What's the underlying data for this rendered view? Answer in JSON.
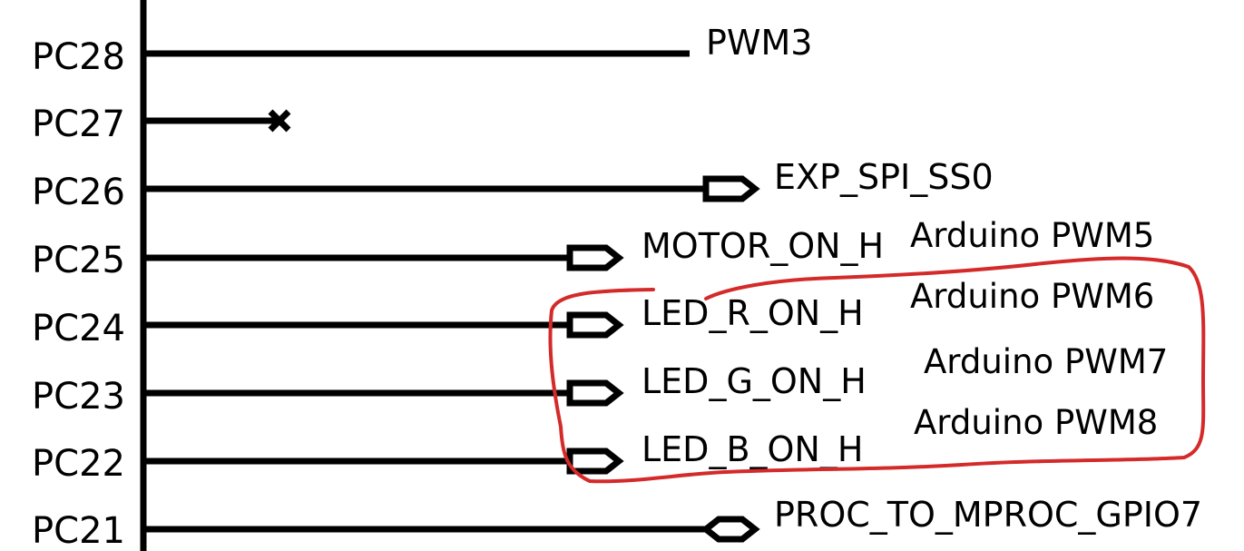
{
  "pins": [
    {
      "name": "PC28",
      "net": "PWM3",
      "end": "plain"
    },
    {
      "name": "PC27",
      "net": "",
      "end": "no-connect"
    },
    {
      "name": "PC26",
      "net": "EXP_SPI_SS0",
      "end": "output-port"
    },
    {
      "name": "PC25",
      "net": "MOTOR_ON_H",
      "end": "output-port"
    },
    {
      "name": "PC24",
      "net": "LED_R_ON_H",
      "end": "output-port"
    },
    {
      "name": "PC23",
      "net": "LED_G_ON_H",
      "end": "output-port"
    },
    {
      "name": "PC22",
      "net": "LED_B_ON_H",
      "end": "output-port"
    },
    {
      "name": "PC21",
      "net": "PROC_TO_MPROC_GPIO7",
      "end": "bidirectional-port"
    }
  ],
  "annotations": {
    "notes": [
      "Arduino PWM5",
      "Arduino PWM6",
      "Arduino PWM7",
      "Arduino PWM8"
    ],
    "highlight_color": "#d42a2a"
  },
  "colors": {
    "wire": "#000000",
    "background": "#ffffff"
  }
}
